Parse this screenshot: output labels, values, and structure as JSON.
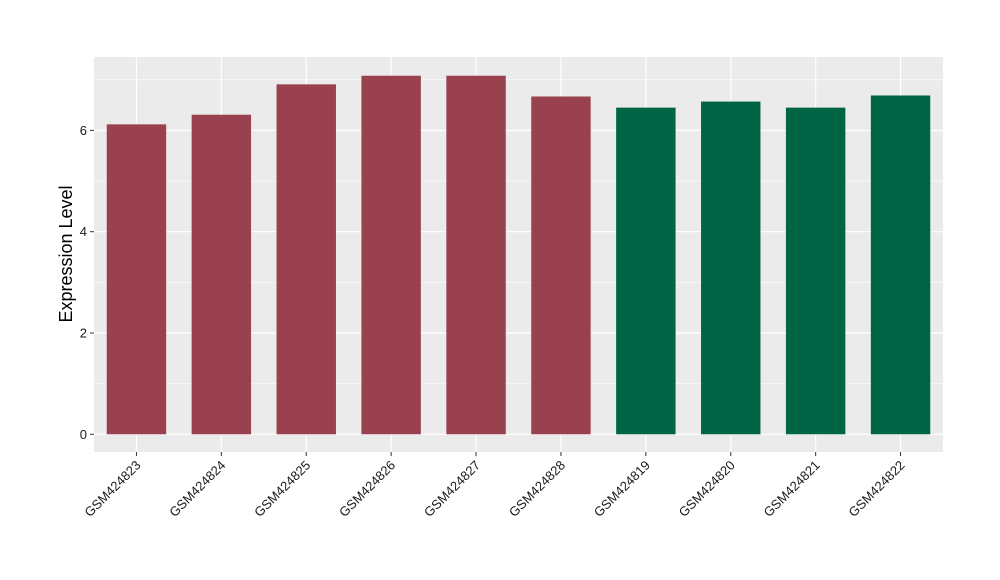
{
  "chart_data": {
    "type": "bar",
    "title": "",
    "xlabel": "",
    "ylabel": "Expression Level",
    "categories": [
      "GSM424823",
      "GSM424824",
      "GSM424825",
      "GSM424826",
      "GSM424827",
      "GSM424828",
      "GSM424819",
      "GSM424820",
      "GSM424821",
      "GSM424822"
    ],
    "values": [
      6.12,
      6.31,
      6.91,
      7.08,
      7.08,
      6.67,
      6.45,
      6.57,
      6.45,
      6.69
    ],
    "bar_colors": [
      "#9a4150",
      "#9a4150",
      "#9a4150",
      "#9a4150",
      "#9a4150",
      "#9a4150",
      "#006544",
      "#006544",
      "#006544",
      "#006544"
    ],
    "ylim": [
      -0.35,
      7.45
    ],
    "yticks": [
      0,
      2,
      4,
      6
    ],
    "grid": true,
    "legend": "none",
    "panel_background": "#ebebeb",
    "grid_color": "#ffffff"
  }
}
